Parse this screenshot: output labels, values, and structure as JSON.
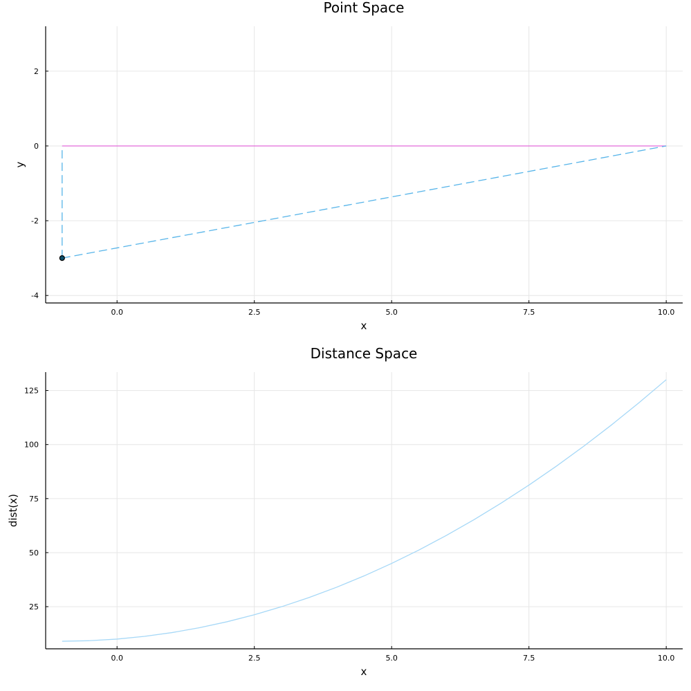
{
  "chart_data": [
    {
      "type": "line",
      "title": "Point Space",
      "xlabel": "x",
      "ylabel": "y",
      "xlim": [
        -1.3,
        10.3
      ],
      "ylim": [
        -4.2,
        3.2
      ],
      "xticks": [
        0.0,
        2.5,
        5.0,
        7.5,
        10.0
      ],
      "xtick_labels": [
        "0.0",
        "2.5",
        "5.0",
        "7.5",
        "10.0"
      ],
      "yticks": [
        -4,
        -2,
        0,
        2
      ],
      "ytick_labels": [
        "-4",
        "-2",
        "0",
        "2"
      ],
      "grid": true,
      "legend": "none",
      "series": [
        {
          "color": "#e26ad9",
          "style": "solid",
          "x": [
            -1,
            10
          ],
          "y": [
            0,
            0
          ]
        },
        {
          "color": "#56b4e9",
          "style": "dashed",
          "x": [
            -1,
            -1
          ],
          "y": [
            -3,
            0
          ]
        },
        {
          "color": "#56b4e9",
          "style": "dashed",
          "x": [
            -1,
            10
          ],
          "y": [
            -3,
            0
          ]
        }
      ],
      "points": [
        {
          "x": -1,
          "y": -3,
          "fill": "#0b4f6c",
          "stroke": "#000000"
        }
      ]
    },
    {
      "type": "line",
      "title": "Distance Space",
      "xlabel": "x",
      "ylabel": "dist(x)",
      "xlim": [
        -1.3,
        10.3
      ],
      "ylim": [
        5.5,
        133.5
      ],
      "xticks": [
        0.0,
        2.5,
        5.0,
        7.5,
        10.0
      ],
      "xtick_labels": [
        "0.0",
        "2.5",
        "5.0",
        "7.5",
        "10.0"
      ],
      "yticks": [
        25,
        50,
        75,
        100,
        125
      ],
      "ytick_labels": [
        "25",
        "50",
        "75",
        "100",
        "125"
      ],
      "grid": true,
      "legend": "none",
      "series": [
        {
          "color": "#a6d8f7",
          "style": "solid",
          "x": [
            -1,
            -0.5,
            0,
            0.5,
            1,
            1.5,
            2,
            2.5,
            3,
            3.5,
            4,
            4.5,
            5,
            5.5,
            6,
            6.5,
            7,
            7.5,
            8,
            8.5,
            9,
            9.5,
            10
          ],
          "y": [
            9,
            9.25,
            10,
            11.25,
            13,
            15.25,
            18,
            21.25,
            25,
            29.25,
            34,
            39.25,
            45,
            51.25,
            58,
            65.25,
            73,
            81.25,
            90,
            99.25,
            109,
            119.25,
            130
          ]
        }
      ]
    }
  ]
}
